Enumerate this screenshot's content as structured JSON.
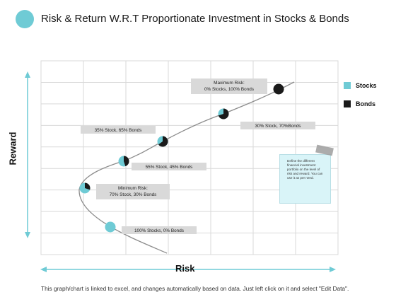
{
  "title": "Risk & Return W.R.T Proportionate Investment in Stocks & Bonds",
  "colors": {
    "stocks": "#6fcbd5",
    "bonds": "#1a1a1a",
    "curve": "#8c8c8c",
    "grid": "#d9d9d9",
    "label_bg": "#d9d9d9",
    "arrow": "#6fcbd5",
    "note_bg": "#d9f4f8"
  },
  "legend": [
    {
      "name": "Stocks",
      "color": "#6fcbd5"
    },
    {
      "name": "Bonds",
      "color": "#1a1a1a"
    }
  ],
  "axes": {
    "x_label": "Risk",
    "y_label": "Reward"
  },
  "note": "Define the different financial investment portfolio on the level of risk and reward. You can use it as per need.",
  "footer": "This graph/chart is linked to excel, and changes automatically based on data. Just left click on it and select \"Edit Data\".",
  "chart_data": {
    "type": "scatter",
    "title": "Risk & Return W.R.T Proportionate Investment in Stocks & Bonds",
    "xlabel": "Risk",
    "ylabel": "Reward",
    "grid": true,
    "legend_position": "right",
    "series": [
      {
        "name": "Stocks",
        "color": "#6fcbd5"
      },
      {
        "name": "Bonds",
        "color": "#1a1a1a"
      }
    ],
    "points": [
      {
        "label": "100% Stocks, 0% Bonds",
        "stocks": 100,
        "bonds": 0
      },
      {
        "label": "Minimum Risk:\n70% Stock, 30% Bonds",
        "stocks": 70,
        "bonds": 30
      },
      {
        "label": "55% Stock, 45% Bonds",
        "stocks": 55,
        "bonds": 45
      },
      {
        "label": "35% Stock, 65% Bonds",
        "stocks": 35,
        "bonds": 65
      },
      {
        "label": "30% Stock, 70%Bonds",
        "stocks": 30,
        "bonds": 70
      },
      {
        "label": "Maximum Risk:\n0% Stocks, 100% Bonds",
        "stocks": 0,
        "bonds": 100
      }
    ]
  }
}
